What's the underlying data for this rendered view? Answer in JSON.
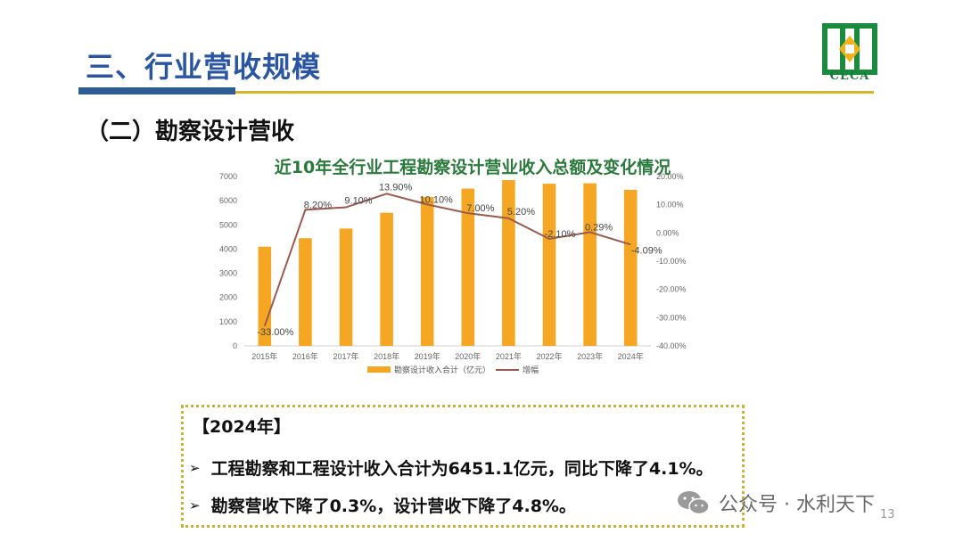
{
  "header": {
    "title": "三、行业营收规模",
    "logo_text": "CECA"
  },
  "section": {
    "title": "（二）勘察设计营收"
  },
  "chart_title": "近10年全行业工程勘察设计营业收入总额及变化情况",
  "chart_data": {
    "type": "bar",
    "title": "近10年全行业工程勘察设计营业收入总额及变化情况",
    "categories": [
      "2015年",
      "2016年",
      "2017年",
      "2018年",
      "2019年",
      "2020年",
      "2021年",
      "2022年",
      "2023年",
      "2024年"
    ],
    "series": [
      {
        "name": "勘察设计收入合计（亿元）",
        "type": "bar",
        "axis": "left",
        "color": "#f5a623",
        "values": [
          4100,
          4450,
          4850,
          5500,
          6150,
          6500,
          6850,
          6700,
          6720,
          6451
        ]
      },
      {
        "name": "增幅",
        "type": "line",
        "axis": "right",
        "color": "#9b5a4e",
        "values": [
          -33.0,
          8.2,
          9.1,
          13.9,
          10.1,
          7.0,
          5.2,
          -2.1,
          0.29,
          -4.09
        ],
        "labels": [
          "-33.00%",
          "8.20%",
          "9.10%",
          "13.90%",
          "10.10%",
          "7.00%",
          "5.20%",
          "-2.10%",
          "0.29%",
          "-4.09%"
        ]
      }
    ],
    "ylim": [
      0,
      7000
    ],
    "yticks": [
      "0",
      "1000",
      "2000",
      "3000",
      "4000",
      "5000",
      "6000",
      "7000"
    ],
    "y2lim": [
      -40,
      20
    ],
    "y2ticks": [
      "-40.00%",
      "-30.00%",
      "-20.00%",
      "-10.00%",
      "0.00%",
      "10.00%",
      "20.00%"
    ],
    "legend_position": "bottom",
    "grid": false
  },
  "summary": {
    "year": "【2024年】",
    "bullet_symbol": "➢",
    "bullets": [
      "工程勘察和工程设计收入合计为6451.1亿元，同比下降了4.1%。",
      "勘察营收下降了0.3%，设计营收下降了4.8%。"
    ]
  },
  "watermark": {
    "text": "公众号 · 水利天下"
  },
  "page_number": "13"
}
